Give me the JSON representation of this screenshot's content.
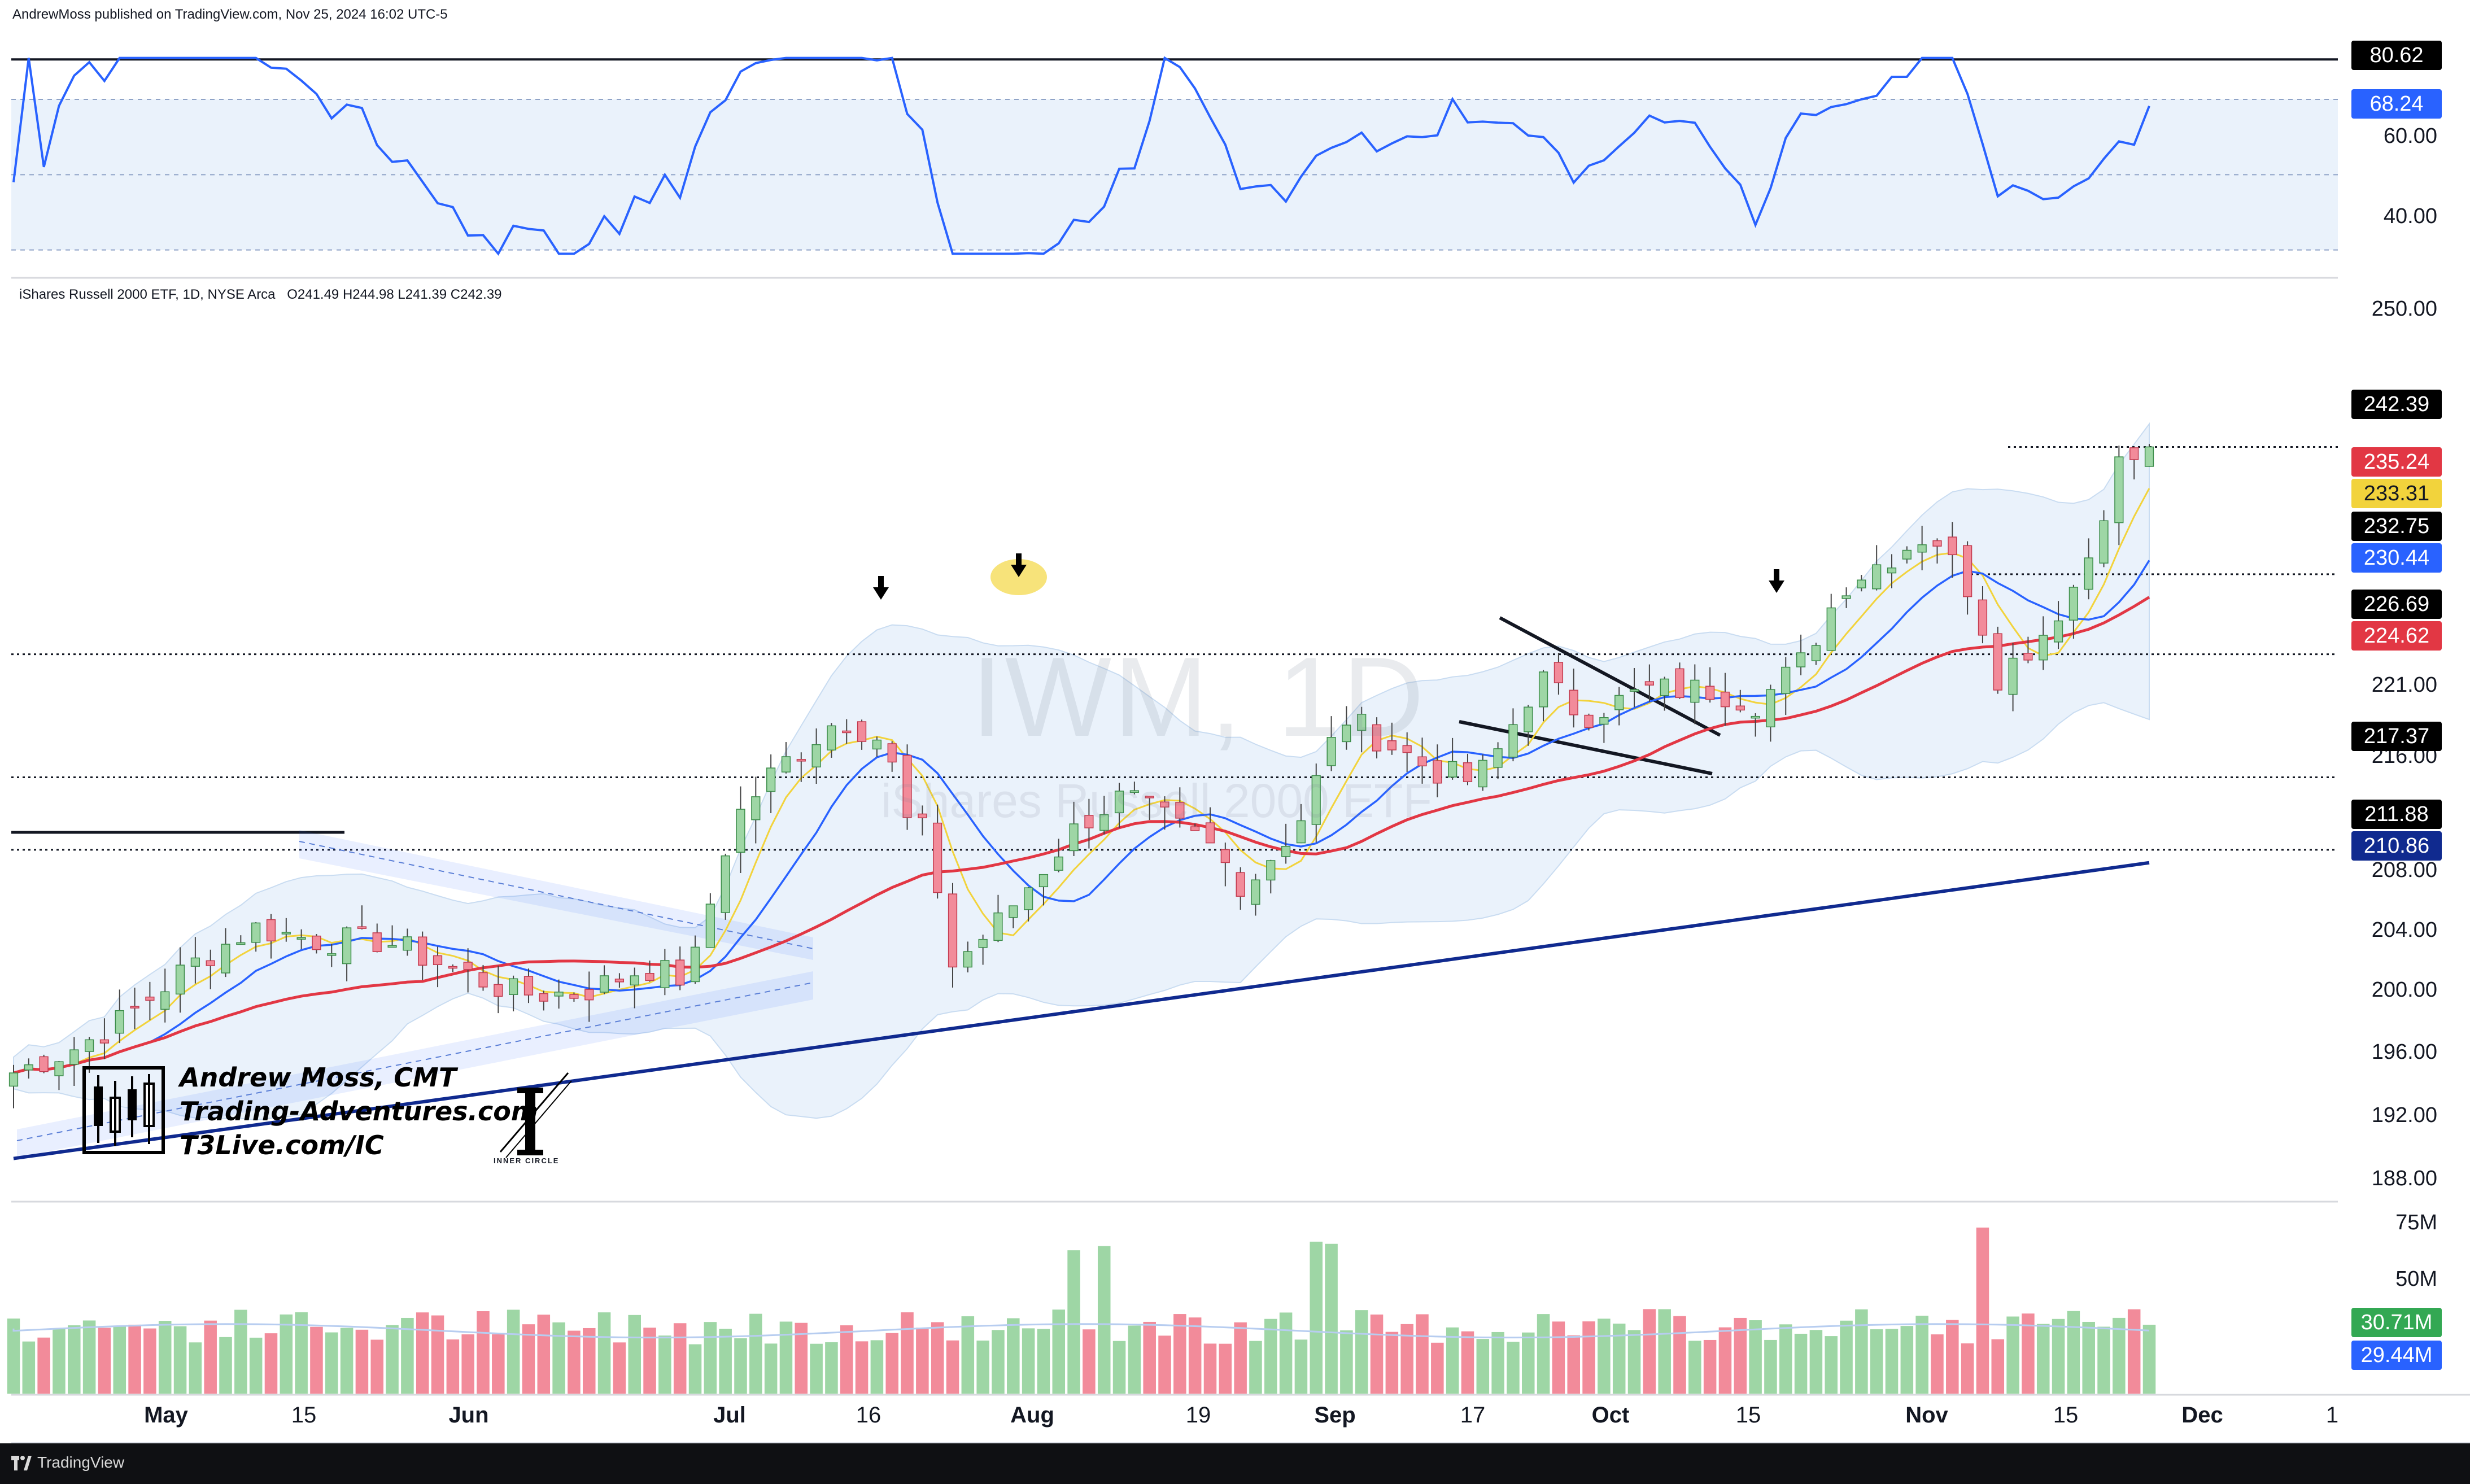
{
  "header": {
    "publisher": "AndrewMoss published on TradingView.com, Nov 25, 2024 16:02 UTC-5"
  },
  "instrument": {
    "title": "iShares Russell 2000 ETF, 1D, NYSE Arca",
    "ohlc": "O241.49  H244.98  L241.39  C242.39",
    "watermark_ticker": "IWM, 1D",
    "watermark_name": "iShares Russell 2000 ETF"
  },
  "author": {
    "line1": "Andrew Moss, CMT",
    "line2": "Trading-Adventures.com",
    "line3": "T3Live.com/IC",
    "badge": "INNER CIRCLE"
  },
  "footer": {
    "brand": "TradingView"
  },
  "colors": {
    "up": "#9ed6a5",
    "down": "#f28b9a",
    "sma_short": "#f2d33c",
    "sma_mid": "#2962ff",
    "sma_50": "#e23744",
    "sma_200": "#102a8f",
    "rsi": "#2962ff",
    "band_fill": "#eaf2fb"
  },
  "rsi_panel": {
    "axis_labels": [
      "60.00",
      "40.00"
    ],
    "tags": [
      {
        "label": "80.62",
        "bg": "#000000"
      },
      {
        "label": "68.24",
        "bg": "#2962ff"
      }
    ]
  },
  "price_axis": {
    "labels": [
      "250.00",
      "221.00",
      "216.00",
      "208.00",
      "204.00",
      "200.00",
      "196.00",
      "192.00",
      "188.00"
    ],
    "tags": [
      {
        "label": "242.39",
        "bg": "#000000"
      },
      {
        "label": "235.24",
        "bg": "#e23744"
      },
      {
        "label": "233.31",
        "bg": "#f2d33c"
      },
      {
        "label": "232.75",
        "bg": "#000000"
      },
      {
        "label": "230.44",
        "bg": "#2962ff"
      },
      {
        "label": "226.69",
        "bg": "#000000"
      },
      {
        "label": "224.62",
        "bg": "#e23744"
      },
      {
        "label": "217.37",
        "bg": "#000000"
      },
      {
        "label": "211.88",
        "bg": "#000000"
      },
      {
        "label": "210.86",
        "bg": "#102a8f"
      }
    ]
  },
  "volume_axis": {
    "labels": [
      "75M",
      "50M"
    ],
    "tags": [
      {
        "label": "30.71M",
        "bg": "#33a853"
      },
      {
        "label": "29.44M",
        "bg": "#2962ff"
      }
    ]
  },
  "time_axis": {
    "labels": [
      "May",
      "15",
      "Jun",
      "Jul",
      "16",
      "Aug",
      "19",
      "Sep",
      "17",
      "Oct",
      "15",
      "Nov",
      "15",
      "Dec",
      "1"
    ]
  },
  "chart_data": {
    "type": "candlestick",
    "timeframe": "1D",
    "price_range": [
      186,
      254
    ],
    "rsi_levels": [
      30,
      50,
      70
    ],
    "rsi_range": [
      28,
      82
    ],
    "volume_range_millions": [
      0,
      80
    ],
    "levels": [
      {
        "label": "242.39"
      },
      {
        "label": "232.75"
      },
      {
        "label": "226.69"
      },
      {
        "label": "217.37"
      },
      {
        "label": "211.88"
      }
    ],
    "last_close": 242.39,
    "rsi_last": 68.24,
    "volume_last_millions": 30.71,
    "volume_avg_millions": 29.44
  }
}
